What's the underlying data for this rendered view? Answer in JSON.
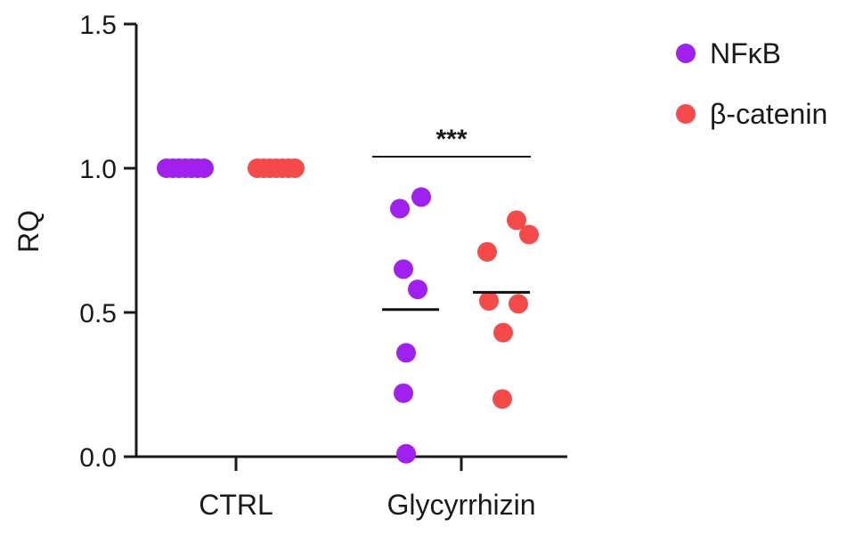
{
  "chart_data": {
    "type": "scatter",
    "ylabel": "RQ",
    "xlabel": "",
    "title": "",
    "ylim": [
      0,
      1.5
    ],
    "yticks": [
      {
        "value": 0,
        "label": "0.0"
      },
      {
        "value": 0.5,
        "label": "0.5"
      },
      {
        "value": 1.0,
        "label": "1.0"
      },
      {
        "value": 1.5,
        "label": "1.5"
      }
    ],
    "categories": [
      "CTRL",
      "Glycyrrhizin"
    ],
    "grid": false,
    "legend_position": "top-right",
    "series": [
      {
        "name": "NFκB",
        "color": "#a020f0",
        "groups": [
          {
            "category": "CTRL",
            "values": [
              1.0,
              1.0,
              1.0,
              1.0,
              1.0,
              1.0,
              1.0
            ],
            "mean": 1.0
          },
          {
            "category": "Glycyrrhizin",
            "values": [
              0.9,
              0.86,
              0.65,
              0.58,
              0.36,
              0.22,
              0.01
            ],
            "mean": 0.51
          }
        ]
      },
      {
        "name": "β-catenin",
        "color": "#f44a4a",
        "groups": [
          {
            "category": "CTRL",
            "values": [
              1.0,
              1.0,
              1.0,
              1.0,
              1.0,
              1.0,
              1.0
            ],
            "mean": 1.0
          },
          {
            "category": "Glycyrrhizin",
            "values": [
              0.82,
              0.77,
              0.71,
              0.54,
              0.53,
              0.43,
              0.2
            ],
            "mean": 0.57
          }
        ]
      }
    ],
    "annotations": [
      {
        "text": "***",
        "between": [
          "Glycyrrhizin",
          "Glycyrrhizin"
        ],
        "y": 1.04
      }
    ]
  }
}
